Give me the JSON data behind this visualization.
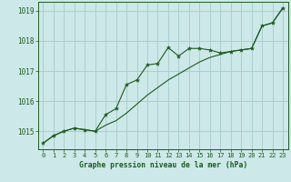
{
  "title": "Graphe pression niveau de la mer (hPa)",
  "background_color": "#cde8e8",
  "grid_color": "#aacece",
  "line_color": "#1a5c1a",
  "xlim": [
    -0.5,
    23.5
  ],
  "ylim": [
    1014.4,
    1019.3
  ],
  "yticks": [
    1015,
    1016,
    1017,
    1018,
    1019
  ],
  "xticks": [
    0,
    1,
    2,
    3,
    4,
    5,
    6,
    7,
    8,
    9,
    10,
    11,
    12,
    13,
    14,
    15,
    16,
    17,
    18,
    19,
    20,
    21,
    22,
    23
  ],
  "series1_marked": [
    [
      0,
      1014.6
    ],
    [
      1,
      1014.85
    ],
    [
      2,
      1015.0
    ],
    [
      3,
      1015.1
    ],
    [
      4,
      1015.05
    ],
    [
      5,
      1015.0
    ],
    [
      6,
      1015.55
    ],
    [
      7,
      1015.75
    ],
    [
      8,
      1016.55
    ],
    [
      9,
      1016.7
    ],
    [
      10,
      1017.2
    ],
    [
      11,
      1017.25
    ],
    [
      12,
      1017.78
    ],
    [
      13,
      1017.5
    ],
    [
      14,
      1017.75
    ],
    [
      15,
      1017.75
    ],
    [
      16,
      1017.7
    ],
    [
      17,
      1017.6
    ],
    [
      18,
      1017.65
    ],
    [
      19,
      1017.7
    ],
    [
      20,
      1017.75
    ],
    [
      21,
      1018.5
    ],
    [
      22,
      1018.6
    ],
    [
      23,
      1019.1
    ]
  ],
  "series2_smooth": [
    [
      0,
      1014.6
    ],
    [
      1,
      1014.85
    ],
    [
      2,
      1015.0
    ],
    [
      3,
      1015.1
    ],
    [
      4,
      1015.05
    ],
    [
      5,
      1015.0
    ],
    [
      6,
      1015.2
    ],
    [
      7,
      1015.35
    ],
    [
      8,
      1015.6
    ],
    [
      9,
      1015.9
    ],
    [
      10,
      1016.2
    ],
    [
      11,
      1016.45
    ],
    [
      12,
      1016.7
    ],
    [
      13,
      1016.9
    ],
    [
      14,
      1017.1
    ],
    [
      15,
      1017.3
    ],
    [
      16,
      1017.45
    ],
    [
      17,
      1017.55
    ],
    [
      18,
      1017.65
    ],
    [
      19,
      1017.7
    ],
    [
      20,
      1017.75
    ],
    [
      21,
      1018.5
    ],
    [
      22,
      1018.6
    ],
    [
      23,
      1019.1
    ]
  ]
}
